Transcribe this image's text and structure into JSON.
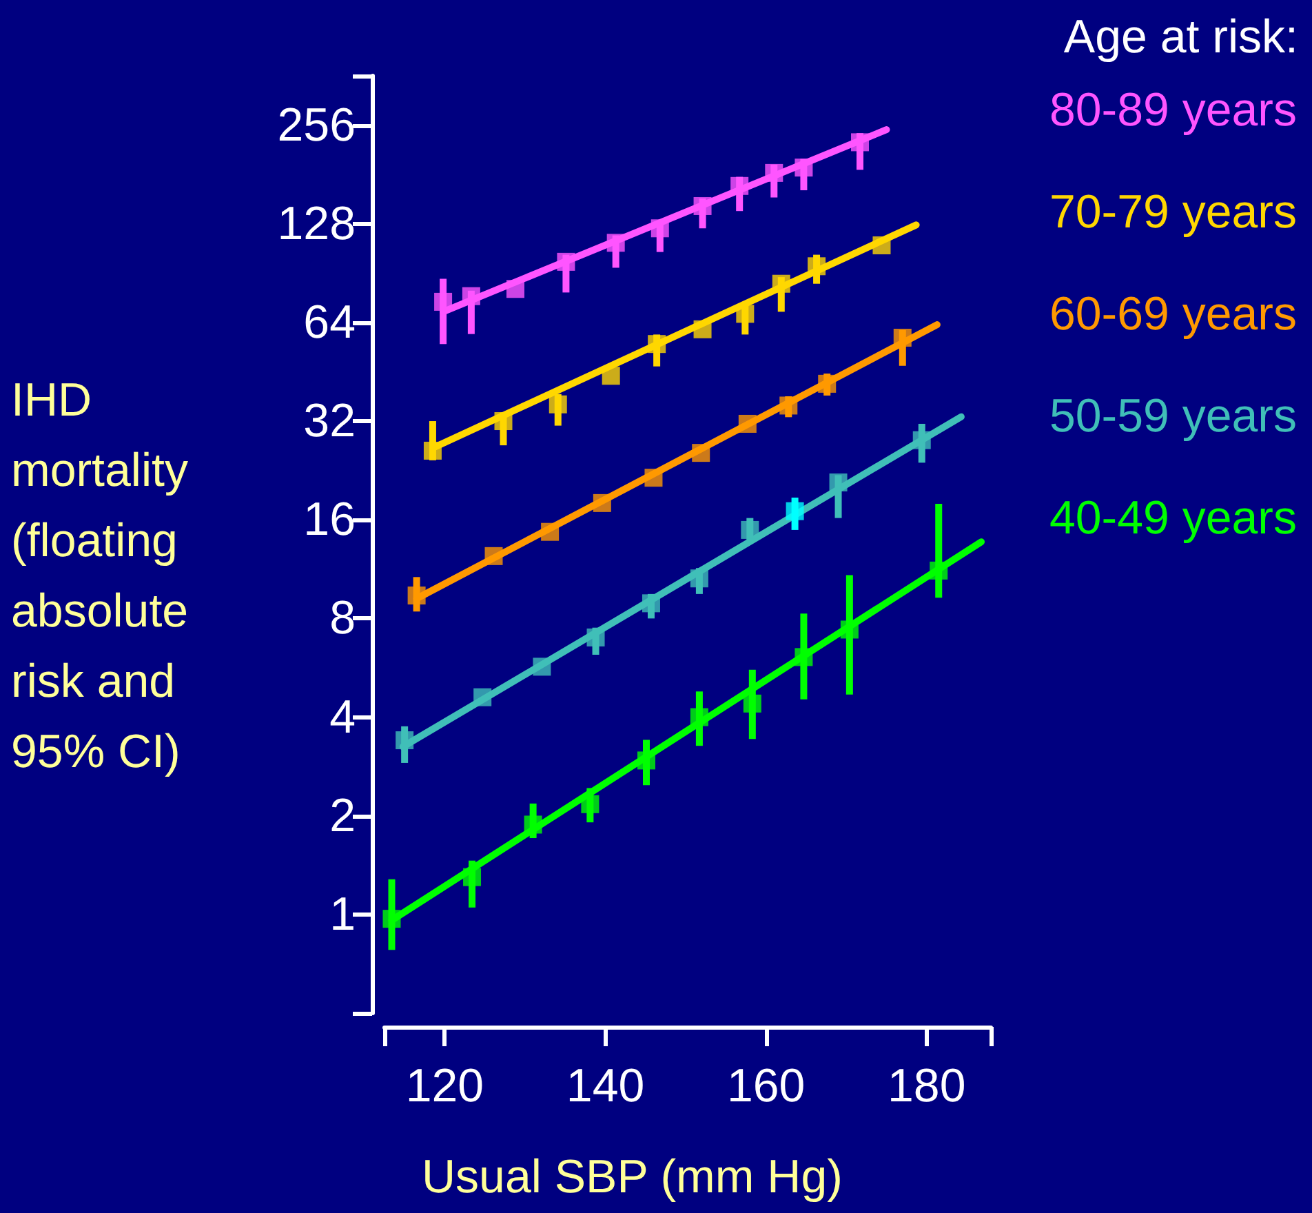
{
  "chart_data": {
    "type": "scatter",
    "xlabel": "Usual SBP (mm Hg)",
    "ylabel": "IHD mortality (floating absolute risk and 95% CI)",
    "legend_title": "Age at risk:",
    "log": "y",
    "grid": false,
    "legend": "right",
    "marker": "square",
    "xlim": [
      112.5,
      188
    ],
    "xticks": [
      {
        "value": 112.5,
        "label": null
      },
      120,
      140,
      160,
      180,
      {
        "value": 188,
        "label": null
      }
    ],
    "ylim": [
      0.5,
      362
    ],
    "yticks": [
      {
        "value": 0.5,
        "label": null
      },
      1,
      2,
      4,
      8,
      16,
      32,
      64,
      128,
      256,
      {
        "value": 362,
        "label": null
      }
    ],
    "series": [
      {
        "name": "80-89 years",
        "color": "#ff55ff",
        "x": [
          119.8,
          123.3,
          128.8,
          135.1,
          141.3,
          146.8,
          152.1,
          156.7,
          161,
          164.7,
          171.7
        ],
        "values": [
          74,
          77,
          81,
          98,
          112,
          124,
          145,
          167,
          183,
          190,
          227
        ],
        "errors": [
          [
            55,
            87
          ],
          [
            59,
            80
          ],
          null,
          [
            79,
            103
          ],
          [
            94,
            118
          ],
          [
            105,
            130
          ],
          [
            124,
            153
          ],
          [
            140,
            178
          ],
          [
            154,
            194
          ],
          [
            162,
            202
          ],
          [
            187,
            242
          ]
        ]
      },
      {
        "name": "70-79 years",
        "color": "#ffd700",
        "x": [
          118.5,
          127.3,
          134.1,
          140.7,
          146.4,
          152.1,
          157.4,
          161.9,
          166.3,
          174.4
        ],
        "values": [
          26,
          32,
          36,
          44,
          55,
          61,
          68,
          84,
          95,
          110
        ],
        "errors": [
          [
            24.3,
            32
          ],
          [
            27,
            34
          ],
          [
            31,
            38.7
          ],
          null,
          [
            47,
            58.8
          ],
          null,
          [
            58.8,
            72.5
          ],
          [
            69,
            88
          ],
          [
            84,
            103
          ],
          null
        ]
      },
      {
        "name": "60-69 years",
        "color": "#ff9900",
        "x": [
          116.5,
          126.1,
          133.1,
          139.6,
          146,
          151.9,
          157.7,
          162.8,
          167.6,
          177
        ],
        "values": [
          9.4,
          12.4,
          14.7,
          18,
          21.5,
          25.6,
          31.4,
          35.7,
          41.6,
          57.5
        ],
        "errors": [
          [
            8.4,
            10.7
          ],
          null,
          null,
          null,
          null,
          null,
          null,
          [
            32.9,
            38.1
          ],
          [
            38.3,
            44.7
          ],
          [
            47.2,
            60.7
          ]
        ]
      },
      {
        "name": "50-59 years",
        "color": "#40bfb8",
        "colors": [
          "#40bfb8",
          "#40bfb8",
          "#40bfb8",
          "#40bfb8",
          "#40bfb8",
          "#40bfb8",
          "#40bfb8",
          "#00ffff",
          "#40bfb8",
          "#40bfb8"
        ],
        "x": [
          115,
          124.7,
          132.1,
          138.8,
          145.7,
          151.7,
          158,
          163.6,
          169,
          179.4
        ],
        "values": [
          3.4,
          4.6,
          5.7,
          7,
          8.9,
          10.6,
          14.9,
          17,
          20.8,
          28
        ],
        "errors": [
          [
            2.9,
            3.75
          ],
          null,
          null,
          [
            6.2,
            7.5
          ],
          [
            8,
            9.5
          ],
          [
            9.5,
            11.4
          ],
          [
            13.6,
            16.2
          ],
          [
            14.9,
            18.7
          ],
          [
            16.2,
            21.9
          ],
          [
            23.9,
            31.4
          ]
        ]
      },
      {
        "name": "40-49 years",
        "color": "#00ff00",
        "x": [
          113.4,
          123.4,
          131,
          138.1,
          145.1,
          151.7,
          158.3,
          164.7,
          170.4,
          181.5
        ],
        "values": [
          0.97,
          1.3,
          1.88,
          2.17,
          2.95,
          4,
          4.4,
          6.1,
          7.4,
          11.2
        ],
        "errors": [
          [
            0.78,
            1.28
          ],
          [
            1.05,
            1.46
          ],
          [
            1.71,
            2.18
          ],
          [
            1.91,
            2.43
          ],
          [
            2.48,
            3.41
          ],
          [
            3.27,
            4.79
          ],
          [
            3.43,
            5.58
          ],
          [
            4.53,
            8.28
          ],
          [
            4.69,
            10.85
          ],
          [
            9.25,
            17.9
          ]
        ]
      },
      {
        "type": "line",
        "marker": "none",
        "color": "#ff55ff",
        "x": [
          119.8,
          175
        ],
        "values": [
          69,
          248
        ]
      },
      {
        "type": "line",
        "marker": "none",
        "color": "#ffd700",
        "x": [
          118.8,
          178.7
        ],
        "values": [
          26.7,
          127
        ]
      },
      {
        "type": "line",
        "marker": "none",
        "color": "#ff9900",
        "x": [
          116.5,
          181.3
        ],
        "values": [
          9.2,
          63
        ]
      },
      {
        "type": "line",
        "marker": "none",
        "color": "#40bfb8",
        "x": [
          114.8,
          184.3
        ],
        "values": [
          3.25,
          33
        ]
      },
      {
        "type": "line",
        "marker": "none",
        "color": "#00ff00",
        "x": [
          113.4,
          186.8
        ],
        "values": [
          0.96,
          13.7
        ]
      }
    ]
  }
}
